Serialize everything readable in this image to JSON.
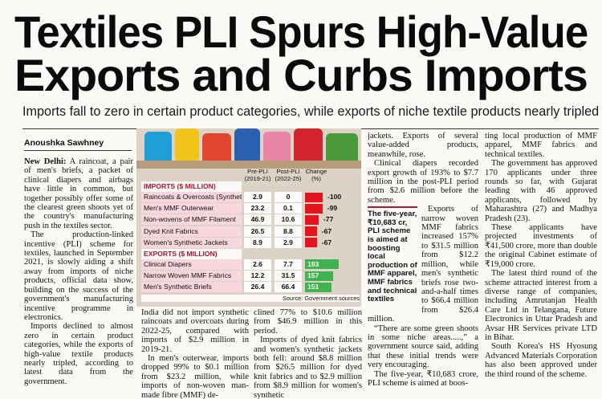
{
  "headline": [
    "Textiles PLI Spurs High-Value",
    "Exports and Curbs Imports"
  ],
  "subheadline": "Imports fall to zero in certain product categories, while exports of niche textile products nearly tripled",
  "byline": "Anoushka Sawhney",
  "dateline": "New Delhi:",
  "table": {
    "columns": [
      "Pre-PLI (2019-21)",
      "Post-PLI (2022-25)",
      "Change (%)"
    ],
    "sections": [
      {
        "title": "IMPORTS ($ MILLION)",
        "rows": [
          {
            "label": "Raincoats & Overcoats (Synthetic)",
            "pre": 2.9,
            "post": 0,
            "change": -100
          },
          {
            "label": "Men's MMF Outerwear",
            "pre": 23.2,
            "post": 0.1,
            "change": -99
          },
          {
            "label": "Non-wovens of MMF Filament",
            "pre": 46.9,
            "post": 10.6,
            "change": -77
          },
          {
            "label": "Dyed Knit Fabrics",
            "pre": 26.5,
            "post": 8.8,
            "change": -67
          },
          {
            "label": "Women's Synthetic Jackets",
            "pre": 8.9,
            "post": 2.9,
            "change": -67
          }
        ]
      },
      {
        "title": "EXPORTS ($ MILLION)",
        "rows": [
          {
            "label": "Clinical Diapers",
            "pre": 2.6,
            "post": 7.7,
            "change": 193
          },
          {
            "label": "Narrow Woven MMF Fabrics",
            "pre": 12.2,
            "post": 31.5,
            "change": 157
          },
          {
            "label": "Men's Synthetic Briefs",
            "pre": 26.4,
            "post": 66.4,
            "change": 151
          }
        ]
      }
    ],
    "source": "Source: Government sources"
  },
  "pull_quote": "The five-year, ₹10,683 cr, PLI scheme is aimed at boosting local production of MMF apparel, MMF fabrics and technical textiles",
  "columns": [
    [
      "A raincoat, a pair of men's briefs, a packet of clinical diapers and airbags have little in common, but together possibly offer some of the clearest green shoots yet of the country's manufacturing push in the textiles sector.",
      "The production-linked incentive (PLI) scheme for textiles, launched in September 2021, is slowly aiding a shift away from imports of niche products, official data show, building on the success of the government's manufacturing incentive programme in electronics.",
      "Imports declined to almost zero in certain product categories, while the exports of high-value textile products nearly tripled, according to latest data from the government."
    ],
    [
      "India did not import synthetic raincoats and overcoats during 2022-25, compared with imports of $2.9 million in 2019-21.",
      "In men's outerwear, imports dropped 99% to $0.1 million from $23.2 million, while imports of non-woven man-made fibre (MMF) de-"
    ],
    [
      "clined 77% to $10.6 million from $46.9 million in this period.",
      "Imports of dyed knit fabrics and women's synthetic jackets both fell: around $8.8 million from $26.5 million for dyed knit fabrics and to $2.9 million from $8.9 million for women's synthetic"
    ],
    [
      "jackets. Exports of several value-added products, meanwhile, rose.",
      "Clinical diapers recorded export growth of 193% to $7.7 million in the post-PLI period from $2.6 million before the scheme.",
      "Exports of narrow woven MMF fabrics increased 157% to $31.5 million from $12.2 million, while men's synthetic briefs rose two-and-a-half times to $66.4 million from $26.4 million.",
      "“There are some green shoots in some niche areas.....,” a government source said, adding that these initial trends were very encouraging.",
      "The five-year, ₹10,683 crore, PLI scheme is aimed at boos-"
    ],
    [
      "ting local production of MMF apparel, MMF fabrics and technical textiles.",
      "The government has approved 170 applicants under three rounds so far, with Gujarat leading with 46 approved applicants, followed by Maharashtra (27) and Madhya Pradesh (23).",
      "These applicants have projected investments of ₹41,500 crore, more than double the original Cabinet estimate of ₹19,000 crore.",
      "The latest third round of the scheme attracted interest from a diverse range of companies, including Amrutanjan Health Care Ltd in Telangana, Future Electronics in Uttar Pradesh and Avsar HR Services private LTD in Bihar.",
      "South Korea's HS Hyosung Advanced Materials Corporation has also been approved under the third round of the scheme."
    ]
  ]
}
